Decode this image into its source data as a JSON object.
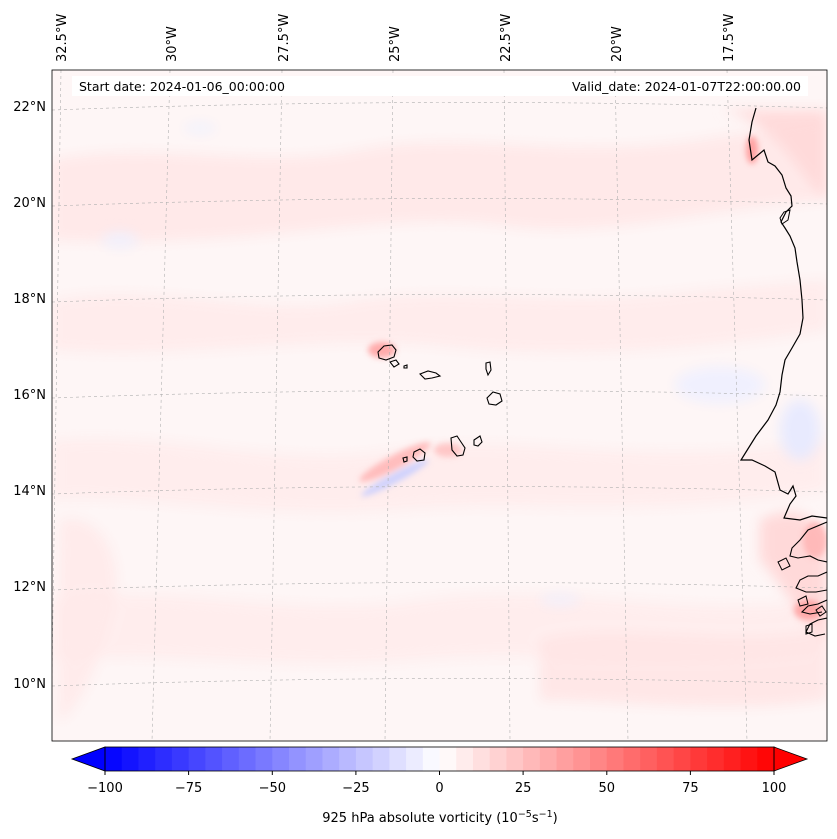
{
  "map": {
    "start_label": "Start date: 2024-01-06_00:00:00",
    "valid_label": "Valid_date: 2024-01-07T22:00:00.00",
    "lon_labels": [
      "32.5°W",
      "30°W",
      "27.5°W",
      "25°W",
      "22.5°W",
      "20°W",
      "17.5°W"
    ],
    "lat_labels": [
      "22°N",
      "20°N",
      "18°N",
      "16°N",
      "14°N",
      "12°N",
      "10°N"
    ],
    "colors": {
      "coast": "#000000",
      "grid": "#b0b0b0",
      "pale_positive": "#fff3f3",
      "light_positive": "#ffe0e0",
      "strong_positive": "#ff9a9a",
      "light_negative": "#eef0ff",
      "medium_negative": "#d8dcff"
    }
  },
  "colorbar": {
    "label_prefix": "925 hPa absolute vorticity (10",
    "exp1": "−5",
    "label_mid": "s",
    "exp2": "−1",
    "label_suffix": ")",
    "ticks": [
      "−100",
      "−75",
      "−50",
      "−25",
      "0",
      "25",
      "50",
      "75",
      "100"
    ],
    "min": -100,
    "max": 100,
    "step": 5,
    "negative_color": "#0000ff",
    "positive_color": "#ff0000",
    "neutral_color": "#ffffff"
  }
}
